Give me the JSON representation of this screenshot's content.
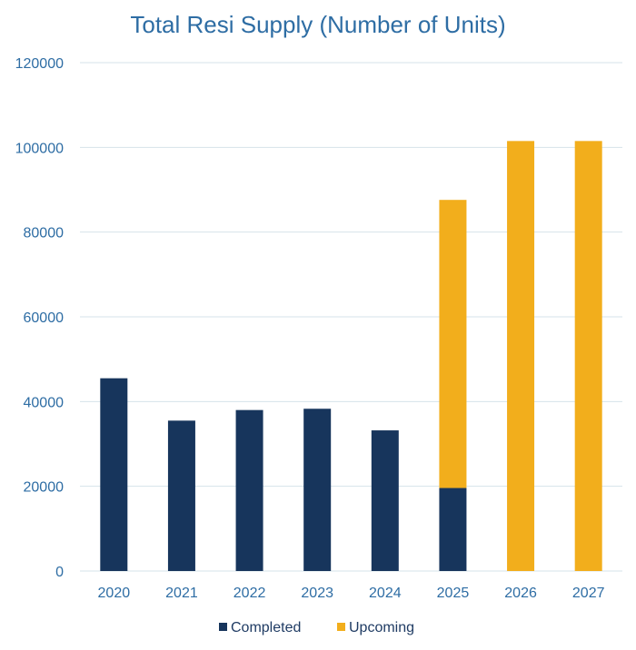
{
  "chart_data": {
    "type": "bar",
    "stacked": true,
    "title": "Total Resi Supply (Number of Units)",
    "xlabel": "",
    "ylabel": "",
    "categories": [
      "2020",
      "2021",
      "2022",
      "2023",
      "2024",
      "2025",
      "2026",
      "2027"
    ],
    "series": [
      {
        "name": "Completed",
        "color": "#17355c",
        "values": [
          45500,
          35500,
          38000,
          38300,
          33200,
          19600,
          0,
          0
        ]
      },
      {
        "name": "Upcoming",
        "color": "#f2ae1c",
        "values": [
          0,
          0,
          0,
          0,
          0,
          68000,
          101500,
          101500
        ]
      }
    ],
    "ylim": [
      0,
      120000
    ],
    "yticks": [
      0,
      20000,
      40000,
      60000,
      80000,
      100000,
      120000
    ],
    "grid": true,
    "legend": "bottom-center"
  }
}
